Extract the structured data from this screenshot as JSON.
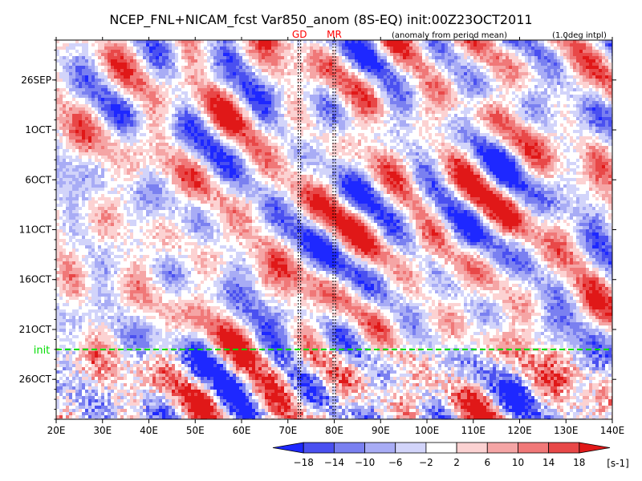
{
  "chart_data": {
    "type": "heatmap",
    "title": "NCEP_FNL+NICAM_fcst Var850_anom (8S-EQ) init:00Z23OCT2011",
    "note_left": "(anomaly from period mean)",
    "note_right": "(1.0deg intpl)",
    "x_ticks": [
      "20E",
      "30E",
      "40E",
      "50E",
      "60E",
      "70E",
      "80E",
      "90E",
      "100E",
      "110E",
      "120E",
      "130E",
      "140E"
    ],
    "x_values": [
      20,
      30,
      40,
      50,
      60,
      70,
      80,
      90,
      100,
      110,
      120,
      130,
      140
    ],
    "xlim": [
      20,
      140
    ],
    "y_ticks": [
      "26SEP",
      "1OCT",
      "6OCT",
      "11OCT",
      "16OCT",
      "21OCT",
      "26OCT"
    ],
    "y_values": [
      "2011-09-26",
      "2011-10-01",
      "2011-10-06",
      "2011-10-11",
      "2011-10-16",
      "2011-10-21",
      "2011-10-26"
    ],
    "ylim": [
      "2011-09-22",
      "2011-10-30"
    ],
    "y_reversed": true,
    "init_label": "init",
    "init_date": "2011-10-23",
    "station_markers": [
      {
        "label": "GD",
        "lon": 72.5
      },
      {
        "label": "MR",
        "lon": 80.0
      }
    ],
    "colorbar": {
      "levels": [
        "-18",
        "-14",
        "-10",
        "-6",
        "-2",
        "2",
        "6",
        "10",
        "14",
        "18"
      ],
      "colors": [
        "#1e28ff",
        "#4a50f0",
        "#7a80f0",
        "#a8acf5",
        "#d2d4fa",
        "#ffffff",
        "#fcd2d2",
        "#f5a5a5",
        "#f07878",
        "#e84848",
        "#e01818"
      ],
      "unit": "[s-1]"
    },
    "colors": {
      "init_line": "#00dd00",
      "marker_text": "#ff0000"
    }
  }
}
